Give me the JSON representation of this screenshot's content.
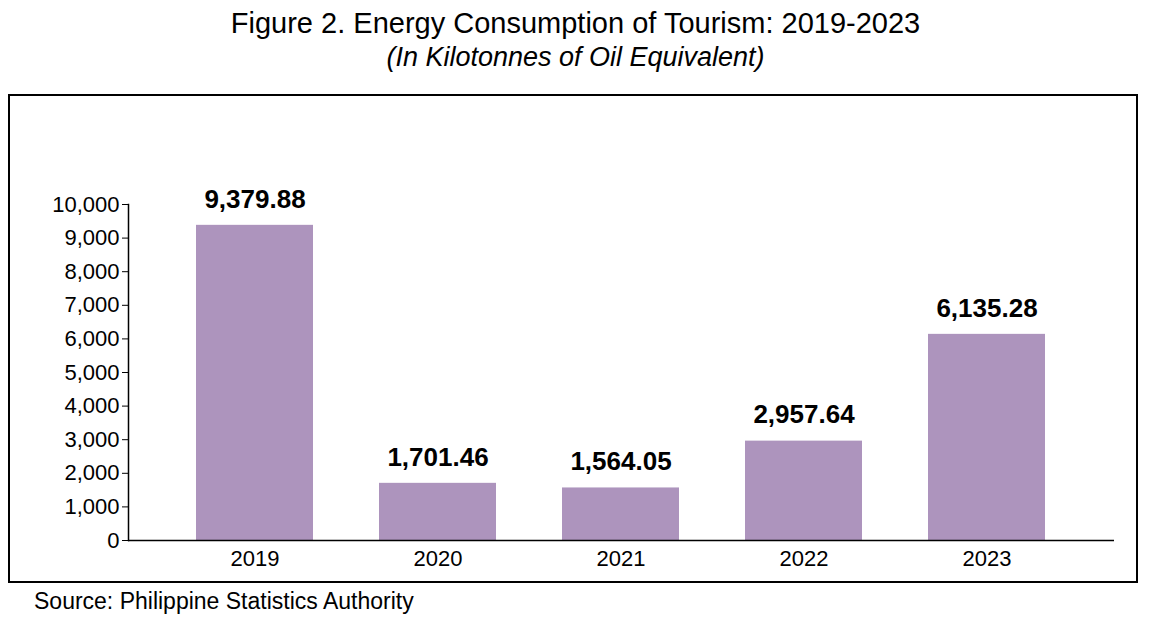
{
  "chart_data": {
    "type": "bar",
    "title": "Figure 2. Energy Consumption of Tourism: 2019-2023",
    "subtitle": "(In Kilotonnes of Oil Equivalent)",
    "caption": "Source: Philippine Statistics Authority",
    "categories": [
      "2019",
      "2020",
      "2021",
      "2022",
      "2023"
    ],
    "values": [
      9379.88,
      1701.46,
      1564.05,
      2957.64,
      6135.28
    ],
    "value_labels": [
      "9,379.88",
      "1,701.46",
      "1,564.05",
      "2,957.64",
      "6,135.28"
    ],
    "color": "#ad94bd",
    "ylim": [
      0,
      10000
    ],
    "yticks": [
      0,
      {
        "value": 1000,
        "label": "1,000"
      },
      {
        "value": 2000,
        "label": "2,000"
      },
      {
        "value": 3000,
        "label": "3,000"
      },
      {
        "value": 4000,
        "label": "4,000"
      },
      {
        "value": 5000,
        "label": "5,000"
      },
      {
        "value": 6000,
        "label": "6,000"
      },
      {
        "value": 7000,
        "label": "7,000"
      },
      {
        "value": 8000,
        "label": "8,000"
      },
      {
        "value": 9000,
        "label": "9,000"
      },
      {
        "value": 10000,
        "label": "10,000"
      }
    ],
    "grid": false,
    "data_labels": true
  }
}
